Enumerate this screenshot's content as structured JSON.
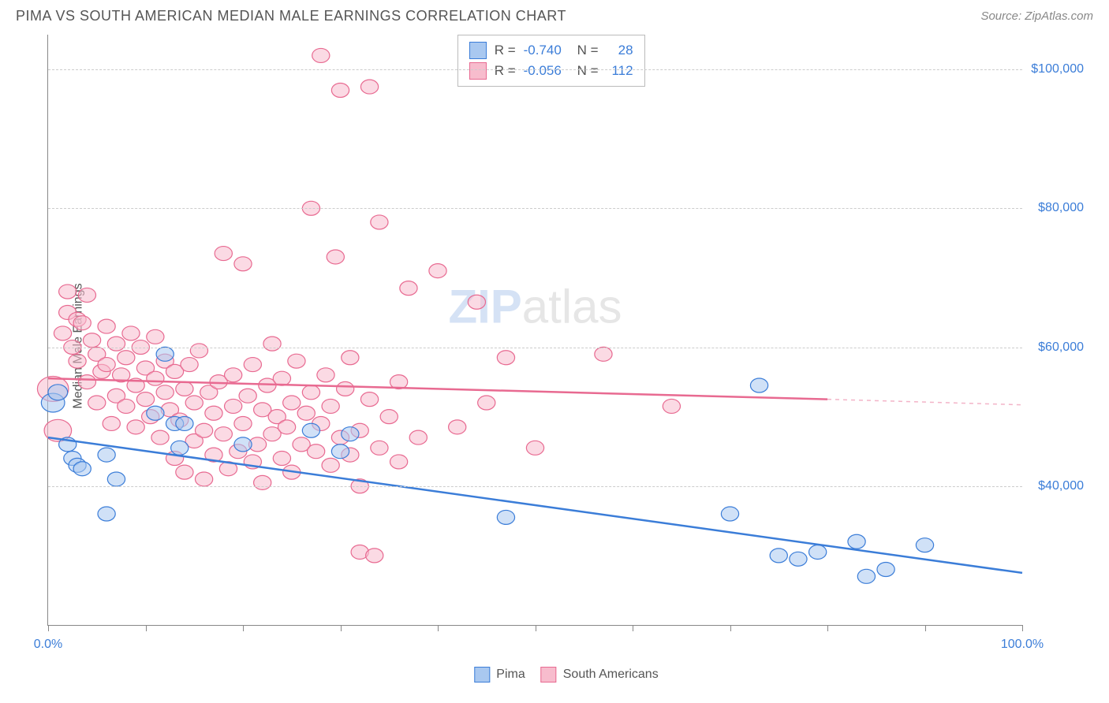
{
  "title": "PIMA VS SOUTH AMERICAN MEDIAN MALE EARNINGS CORRELATION CHART",
  "source": "Source: ZipAtlas.com",
  "watermark_zip": "ZIP",
  "watermark_atlas": "atlas",
  "y_axis_label": "Median Male Earnings",
  "chart": {
    "type": "scatter",
    "background_color": "#ffffff",
    "grid_color": "#cccccc",
    "axis_color": "#888888",
    "text_color": "#555555",
    "value_color": "#3b7dd8",
    "xlim": [
      0,
      100
    ],
    "ylim": [
      20000,
      105000
    ],
    "x_tick_positions": [
      0,
      10,
      20,
      30,
      40,
      50,
      60,
      70,
      80,
      90,
      100
    ],
    "x_tick_labels": {
      "0": "0.0%",
      "100": "100.0%"
    },
    "y_gridlines": [
      40000,
      60000,
      80000,
      100000
    ],
    "y_tick_labels": {
      "40000": "$40,000",
      "60000": "$60,000",
      "80000": "$80,000",
      "100000": "$100,000"
    },
    "series": [
      {
        "name": "Pima",
        "fill_color": "#a9c8f0",
        "stroke_color": "#3b7dd8",
        "fill_opacity": 0.55,
        "marker_r": 9,
        "trend_line": {
          "x1": 0,
          "y1": 47000,
          "x2": 100,
          "y2": 27500,
          "stroke_width": 2.5
        },
        "trend_dash_from_x": null,
        "points": [
          [
            0.5,
            52000,
            12
          ],
          [
            1,
            53500,
            10
          ],
          [
            2,
            46000,
            9
          ],
          [
            2.5,
            44000,
            9
          ],
          [
            3,
            43000,
            9
          ],
          [
            3.5,
            42500,
            9
          ],
          [
            6,
            36000,
            9
          ],
          [
            6,
            44500,
            9
          ],
          [
            7,
            41000,
            9
          ],
          [
            11,
            50500,
            9
          ],
          [
            12,
            59000,
            9
          ],
          [
            13,
            49000,
            9
          ],
          [
            13.5,
            45500,
            9
          ],
          [
            14,
            49000,
            9
          ],
          [
            20,
            46000,
            9
          ],
          [
            27,
            48000,
            9
          ],
          [
            30,
            45000,
            9
          ],
          [
            31,
            47500,
            9
          ],
          [
            47,
            35500,
            9
          ],
          [
            70,
            36000,
            9
          ],
          [
            73,
            54500,
            9
          ],
          [
            75,
            30000,
            9
          ],
          [
            77,
            29500,
            9
          ],
          [
            79,
            30500,
            9
          ],
          [
            83,
            32000,
            9
          ],
          [
            84,
            27000,
            9
          ],
          [
            86,
            28000,
            9
          ],
          [
            90,
            31500,
            9
          ]
        ]
      },
      {
        "name": "South Americans",
        "fill_color": "#f7bccd",
        "stroke_color": "#e86a91",
        "fill_opacity": 0.55,
        "marker_r": 9,
        "trend_line": {
          "x1": 0,
          "y1": 55500,
          "x2": 80,
          "y2": 52500,
          "stroke_width": 2.5
        },
        "trend_dash_from_x": 80,
        "trend_dash_line": {
          "x1": 80,
          "y1": 52500,
          "x2": 100,
          "y2": 51700
        },
        "points": [
          [
            0.5,
            54000,
            16
          ],
          [
            1,
            48000,
            14
          ],
          [
            1.5,
            62000,
            9
          ],
          [
            2,
            65000,
            9
          ],
          [
            2,
            68000,
            9
          ],
          [
            2.5,
            60000,
            9
          ],
          [
            3,
            64000,
            9
          ],
          [
            3,
            58000,
            9
          ],
          [
            3.5,
            63500,
            9
          ],
          [
            4,
            67500,
            9
          ],
          [
            4,
            55000,
            9
          ],
          [
            4.5,
            61000,
            9
          ],
          [
            5,
            59000,
            9
          ],
          [
            5,
            52000,
            9
          ],
          [
            5.5,
            56500,
            9
          ],
          [
            6,
            63000,
            9
          ],
          [
            6,
            57500,
            9
          ],
          [
            6.5,
            49000,
            9
          ],
          [
            7,
            60500,
            9
          ],
          [
            7,
            53000,
            9
          ],
          [
            7.5,
            56000,
            9
          ],
          [
            8,
            51500,
            9
          ],
          [
            8,
            58500,
            9
          ],
          [
            8.5,
            62000,
            9
          ],
          [
            9,
            54500,
            9
          ],
          [
            9,
            48500,
            9
          ],
          [
            9.5,
            60000,
            9
          ],
          [
            10,
            57000,
            9
          ],
          [
            10,
            52500,
            9
          ],
          [
            10.5,
            50000,
            9
          ],
          [
            11,
            55500,
            9
          ],
          [
            11,
            61500,
            9
          ],
          [
            11.5,
            47000,
            9
          ],
          [
            12,
            53500,
            9
          ],
          [
            12,
            58000,
            9
          ],
          [
            12.5,
            51000,
            9
          ],
          [
            13,
            56500,
            9
          ],
          [
            13,
            44000,
            9
          ],
          [
            13.5,
            49500,
            9
          ],
          [
            14,
            54000,
            9
          ],
          [
            14,
            42000,
            9
          ],
          [
            14.5,
            57500,
            9
          ],
          [
            15,
            46500,
            9
          ],
          [
            15,
            52000,
            9
          ],
          [
            15.5,
            59500,
            9
          ],
          [
            16,
            48000,
            9
          ],
          [
            16,
            41000,
            9
          ],
          [
            16.5,
            53500,
            9
          ],
          [
            17,
            44500,
            9
          ],
          [
            17,
            50500,
            9
          ],
          [
            17.5,
            55000,
            9
          ],
          [
            18,
            73500,
            9
          ],
          [
            18,
            47500,
            9
          ],
          [
            18.5,
            42500,
            9
          ],
          [
            19,
            51500,
            9
          ],
          [
            19,
            56000,
            9
          ],
          [
            19.5,
            45000,
            9
          ],
          [
            20,
            72000,
            9
          ],
          [
            20,
            49000,
            9
          ],
          [
            20.5,
            53000,
            9
          ],
          [
            21,
            43500,
            9
          ],
          [
            21,
            57500,
            9
          ],
          [
            21.5,
            46000,
            9
          ],
          [
            22,
            51000,
            9
          ],
          [
            22,
            40500,
            9
          ],
          [
            22.5,
            54500,
            9
          ],
          [
            23,
            47500,
            9
          ],
          [
            23,
            60500,
            9
          ],
          [
            23.5,
            50000,
            9
          ],
          [
            24,
            44000,
            9
          ],
          [
            24,
            55500,
            9
          ],
          [
            24.5,
            48500,
            9
          ],
          [
            25,
            52000,
            9
          ],
          [
            25,
            42000,
            9
          ],
          [
            25.5,
            58000,
            9
          ],
          [
            26,
            46000,
            9
          ],
          [
            26.5,
            50500,
            9
          ],
          [
            27,
            80000,
            9
          ],
          [
            27,
            53500,
            9
          ],
          [
            27.5,
            45000,
            9
          ],
          [
            28,
            49000,
            9
          ],
          [
            28,
            102000,
            9
          ],
          [
            28.5,
            56000,
            9
          ],
          [
            29,
            43000,
            9
          ],
          [
            29,
            51500,
            9
          ],
          [
            29.5,
            73000,
            9
          ],
          [
            30,
            47000,
            9
          ],
          [
            30,
            97000,
            9
          ],
          [
            30.5,
            54000,
            9
          ],
          [
            31,
            44500,
            9
          ],
          [
            31,
            58500,
            9
          ],
          [
            32,
            48000,
            9
          ],
          [
            32,
            40000,
            9
          ],
          [
            33,
            52500,
            9
          ],
          [
            33,
            97500,
            9
          ],
          [
            34,
            45500,
            9
          ],
          [
            34,
            78000,
            9
          ],
          [
            35,
            50000,
            9
          ],
          [
            36,
            43500,
            9
          ],
          [
            36,
            55000,
            9
          ],
          [
            37,
            68500,
            9
          ],
          [
            38,
            47000,
            9
          ],
          [
            40,
            71000,
            9
          ],
          [
            42,
            48500,
            9
          ],
          [
            44,
            66500,
            9
          ],
          [
            45,
            52000,
            9
          ],
          [
            47,
            58500,
            9
          ],
          [
            50,
            45500,
            9
          ],
          [
            57,
            59000,
            9
          ],
          [
            64,
            51500,
            9
          ],
          [
            32,
            30500,
            9
          ],
          [
            33.5,
            30000,
            9
          ]
        ]
      }
    ],
    "stats": [
      {
        "series": "Pima",
        "r": "-0.740",
        "n": "28"
      },
      {
        "series": "South Americans",
        "r": "-0.056",
        "n": "112"
      }
    ]
  },
  "legend": {
    "series1": "Pima",
    "series2": "South Americans"
  },
  "stats_labels": {
    "r": "R =",
    "n": "N ="
  }
}
